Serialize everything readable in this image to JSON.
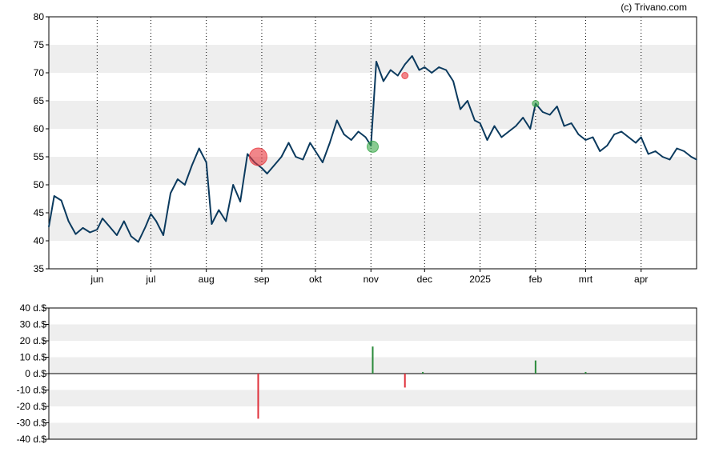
{
  "credit": "(c) Trivano.com",
  "chart_data": [
    {
      "type": "line",
      "title": "",
      "xlabel": "",
      "ylabel": "",
      "ylim": [
        35,
        80
      ],
      "yticks": [
        35,
        40,
        45,
        50,
        55,
        60,
        65,
        70,
        75,
        80
      ],
      "x_tick_labels": [
        "jun",
        "jul",
        "aug",
        "sep",
        "okt",
        "nov",
        "dec",
        "2025",
        "feb",
        "mrt",
        "apr"
      ],
      "x_tick_dates": [
        "2024-06-01",
        "2024-07-01",
        "2024-08-01",
        "2024-09-01",
        "2024-10-01",
        "2024-11-01",
        "2024-12-01",
        "2025-01-01",
        "2025-02-01",
        "2025-03-01",
        "2025-04-01"
      ],
      "x_range": [
        "2024-05-05",
        "2025-05-02"
      ],
      "grid": "vertical dotted at month ticks, alternating horizontal bands",
      "line_color": "#0b3a5e",
      "series": [
        {
          "x": [
            "2024-05-05",
            "2024-05-08",
            "2024-05-12",
            "2024-05-16",
            "2024-05-20",
            "2024-05-24",
            "2024-05-28",
            "2024-06-01",
            "2024-06-04",
            "2024-06-08",
            "2024-06-12",
            "2024-06-16",
            "2024-06-20",
            "2024-06-24",
            "2024-06-28",
            "2024-07-01",
            "2024-07-04",
            "2024-07-08",
            "2024-07-12",
            "2024-07-16",
            "2024-07-20",
            "2024-07-24",
            "2024-07-28",
            "2024-08-01",
            "2024-08-04",
            "2024-08-08",
            "2024-08-12",
            "2024-08-16",
            "2024-08-20",
            "2024-08-24",
            "2024-08-28",
            "2024-09-01",
            "2024-09-04",
            "2024-09-08",
            "2024-09-12",
            "2024-09-16",
            "2024-09-20",
            "2024-09-24",
            "2024-09-28",
            "2024-10-01",
            "2024-10-05",
            "2024-10-09",
            "2024-10-13",
            "2024-10-17",
            "2024-10-21",
            "2024-10-25",
            "2024-10-29",
            "2024-11-01",
            "2024-11-04",
            "2024-11-08",
            "2024-11-12",
            "2024-11-16",
            "2024-11-20",
            "2024-11-24",
            "2024-11-28",
            "2024-12-01",
            "2024-12-05",
            "2024-12-09",
            "2024-12-13",
            "2024-12-17",
            "2024-12-21",
            "2024-12-25",
            "2024-12-29",
            "2025-01-01",
            "2025-01-05",
            "2025-01-09",
            "2025-01-13",
            "2025-01-17",
            "2025-01-21",
            "2025-01-25",
            "2025-01-29",
            "2025-02-01",
            "2025-02-05",
            "2025-02-09",
            "2025-02-13",
            "2025-02-17",
            "2025-02-21",
            "2025-02-25",
            "2025-03-01",
            "2025-03-05",
            "2025-03-09",
            "2025-03-13",
            "2025-03-17",
            "2025-03-21",
            "2025-03-25",
            "2025-03-29",
            "2025-04-01",
            "2025-04-05",
            "2025-04-09",
            "2025-04-13",
            "2025-04-17",
            "2025-04-21",
            "2025-04-25",
            "2025-04-29",
            "2025-05-02"
          ],
          "y": [
            42.5,
            48.0,
            47.2,
            43.5,
            41.2,
            42.3,
            41.5,
            42.0,
            44.0,
            42.5,
            41.0,
            43.5,
            40.8,
            39.8,
            42.5,
            44.8,
            43.5,
            41.0,
            48.5,
            51.0,
            50.0,
            53.5,
            56.5,
            54.0,
            43.0,
            45.5,
            43.5,
            50.0,
            47.0,
            55.5,
            54.0,
            53.0,
            52.0,
            53.5,
            55.0,
            57.5,
            55.0,
            54.5,
            57.5,
            56.0,
            54.0,
            57.5,
            61.5,
            59.0,
            58.0,
            59.5,
            58.5,
            57.0,
            72.0,
            68.5,
            70.5,
            69.5,
            71.5,
            73.0,
            70.5,
            71.0,
            70.0,
            71.0,
            70.5,
            68.5,
            63.5,
            65.0,
            61.5,
            61.0,
            58.0,
            60.5,
            58.5,
            59.5,
            60.5,
            62.0,
            60.0,
            64.5,
            63.0,
            62.5,
            64.0,
            60.5,
            61.0,
            59.0,
            58.0,
            58.5,
            56.0,
            57.0,
            59.0,
            59.5,
            58.5,
            57.5,
            58.5,
            55.5,
            56.0,
            55.0,
            54.5,
            56.5,
            56.0,
            55.0,
            54.5
          ]
        }
      ],
      "markers": [
        {
          "date": "2024-08-30",
          "value": 55.0,
          "color": "#e8363c",
          "size": "large"
        },
        {
          "date": "2024-11-02",
          "value": 56.8,
          "color": "#3aa84a",
          "size": "medium"
        },
        {
          "date": "2024-11-20",
          "value": 69.5,
          "color": "#e8363c",
          "size": "small"
        },
        {
          "date": "2025-02-01",
          "value": 64.5,
          "color": "#3aa84a",
          "size": "small"
        }
      ]
    },
    {
      "type": "bar",
      "title": "",
      "ylim": [
        -40,
        40
      ],
      "ytick_labels": [
        "40 d.$",
        "30 d.$",
        "20 d.$",
        "10 d.$",
        "0 d.$",
        "-10 d.$",
        "-20 d.$",
        "-30 d.$",
        "-40 d.$"
      ],
      "ytick_values": [
        40,
        30,
        20,
        10,
        0,
        -10,
        -20,
        -30,
        -40
      ],
      "colors": {
        "positive": "#2a8a3a",
        "negative": "#e0303a"
      },
      "bars": [
        {
          "date": "2024-08-30",
          "value": -27.5
        },
        {
          "date": "2024-11-02",
          "value": 16.5
        },
        {
          "date": "2024-11-20",
          "value": -8.5
        },
        {
          "date": "2024-11-30",
          "value": 1.0
        },
        {
          "date": "2025-02-01",
          "value": 8.0
        },
        {
          "date": "2025-03-01",
          "value": 1.0
        }
      ]
    }
  ]
}
